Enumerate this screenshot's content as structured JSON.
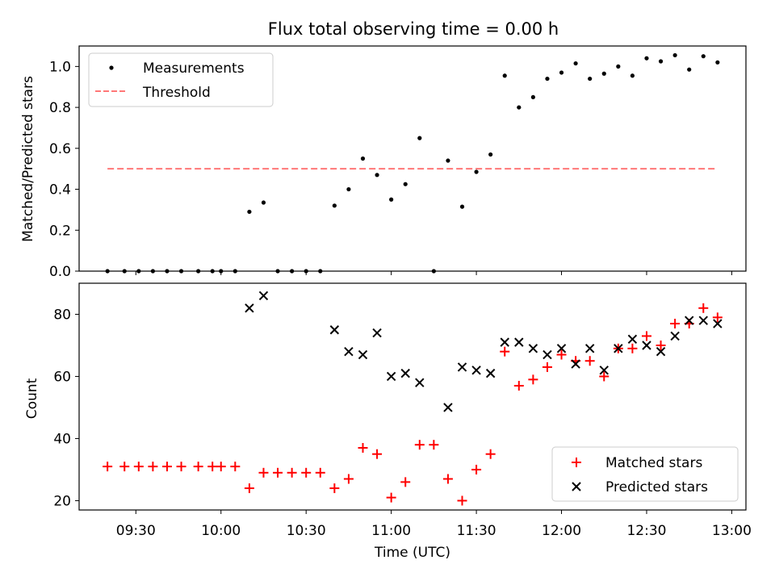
{
  "title": "Flux total observing time = 0.00 h",
  "colors": {
    "measurement": "#000000",
    "threshold": "#ff7777",
    "matched": "#ff0000",
    "predicted": "#000000"
  },
  "chart_data": [
    {
      "type": "scatter",
      "ylabel": "Matched/Predicted stars",
      "xlim": [
        "09:10",
        "13:05"
      ],
      "ylim": [
        0,
        1.1
      ],
      "yticks": [
        "0.0",
        "0.2",
        "0.4",
        "0.6",
        "0.8",
        "1.0"
      ],
      "legend": {
        "placement": "top-left",
        "entries": [
          "Measurements",
          "Threshold"
        ]
      },
      "threshold": {
        "name": "Threshold",
        "value": 0.5,
        "x_start": "09:20",
        "x_end": "12:55",
        "style": "dashed"
      },
      "series": [
        {
          "name": "Measurements",
          "marker": "dot",
          "x": [
            "09:20",
            "09:26",
            "09:31",
            "09:36",
            "09:41",
            "09:46",
            "09:52",
            "09:57",
            "10:00",
            "10:05",
            "10:10",
            "10:15",
            "10:20",
            "10:25",
            "10:30",
            "10:35",
            "10:40",
            "10:45",
            "10:50",
            "10:55",
            "11:00",
            "11:05",
            "11:10",
            "11:15",
            "11:20",
            "11:25",
            "11:30",
            "11:35",
            "11:40",
            "11:45",
            "11:50",
            "11:55",
            "12:00",
            "12:05",
            "12:10",
            "12:15",
            "12:20",
            "12:25",
            "12:30",
            "12:35",
            "12:40",
            "12:45",
            "12:50",
            "12:55"
          ],
          "y": [
            0,
            0,
            0,
            0,
            0,
            0,
            0,
            0,
            0,
            0,
            0.29,
            0.335,
            0,
            0,
            0,
            0,
            0.32,
            0.4,
            0.55,
            0.47,
            0.35,
            0.425,
            0.65,
            0,
            0.54,
            0.315,
            0.485,
            0.57,
            0.955,
            0.8,
            0.85,
            0.94,
            0.97,
            1.015,
            0.94,
            0.965,
            1.0,
            0.955,
            1.04,
            1.025,
            1.055,
            0.985,
            1.05,
            1.02
          ]
        }
      ]
    },
    {
      "type": "scatter",
      "xlabel": "Time (UTC)",
      "ylabel": "Count",
      "xlim": [
        "09:10",
        "13:05"
      ],
      "ylim": [
        17,
        90
      ],
      "xticks": [
        "09:30",
        "10:00",
        "10:30",
        "11:00",
        "11:30",
        "12:00",
        "12:30",
        "13:00"
      ],
      "yticks": [
        "20",
        "40",
        "60",
        "80"
      ],
      "legend": {
        "placement": "bottom-right",
        "entries": [
          "Matched stars",
          "Predicted stars"
        ]
      },
      "series": [
        {
          "name": "Matched stars",
          "marker": "plus",
          "x": [
            "09:20",
            "09:26",
            "09:31",
            "09:36",
            "09:41",
            "09:46",
            "09:52",
            "09:57",
            "10:00",
            "10:05",
            "10:10",
            "10:15",
            "10:20",
            "10:25",
            "10:30",
            "10:35",
            "10:40",
            "10:45",
            "10:50",
            "10:55",
            "11:00",
            "11:05",
            "11:10",
            "11:15",
            "11:20",
            "11:25",
            "11:30",
            "11:35",
            "11:40",
            "11:45",
            "11:50",
            "11:55",
            "12:00",
            "12:05",
            "12:10",
            "12:15",
            "12:20",
            "12:25",
            "12:30",
            "12:35",
            "12:40",
            "12:45",
            "12:50",
            "12:55"
          ],
          "y": [
            31,
            31,
            31,
            31,
            31,
            31,
            31,
            31,
            31,
            31,
            24,
            29,
            29,
            29,
            29,
            29,
            24,
            27,
            37,
            35,
            21,
            26,
            38,
            38,
            27,
            20,
            30,
            35,
            68,
            57,
            59,
            63,
            67,
            65,
            65,
            60,
            69,
            69,
            73,
            70,
            77,
            77,
            82,
            79
          ]
        },
        {
          "name": "Predicted stars",
          "marker": "x",
          "x": [
            "10:10",
            "10:15",
            "10:40",
            "10:45",
            "10:50",
            "10:55",
            "11:00",
            "11:05",
            "11:10",
            "11:20",
            "11:25",
            "11:30",
            "11:35",
            "11:40",
            "11:45",
            "11:50",
            "11:55",
            "12:00",
            "12:05",
            "12:10",
            "12:15",
            "12:20",
            "12:25",
            "12:30",
            "12:35",
            "12:40",
            "12:45",
            "12:50",
            "12:55"
          ],
          "y": [
            82,
            86,
            75,
            68,
            67,
            74,
            60,
            61,
            58,
            50,
            63,
            62,
            61,
            71,
            71,
            69,
            67,
            69,
            64,
            69,
            62,
            69,
            72,
            70,
            68,
            73,
            78,
            78,
            77
          ]
        }
      ]
    }
  ]
}
